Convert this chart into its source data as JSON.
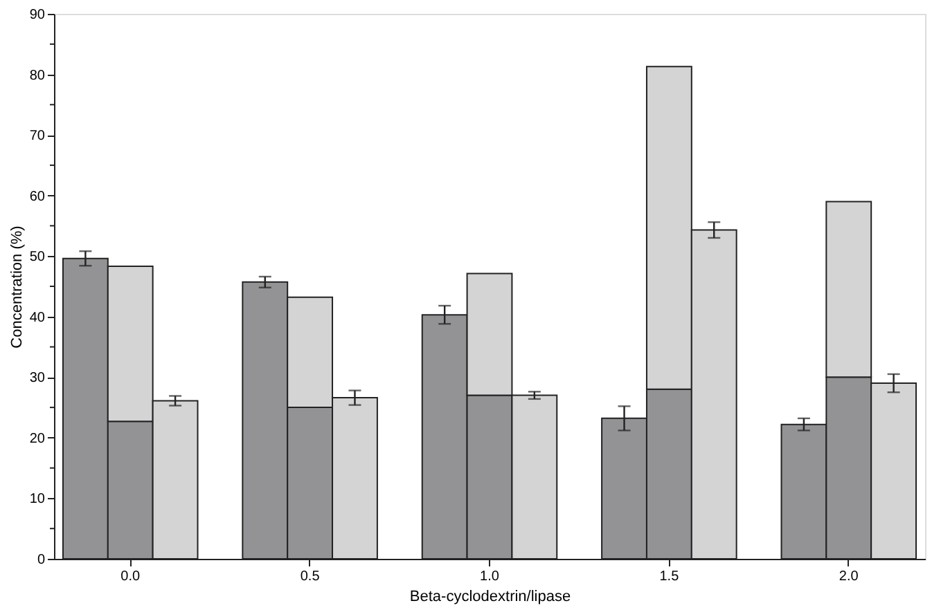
{
  "chart_data": {
    "type": "bar",
    "xlabel": "Beta-cyclodextrin/lipase",
    "ylabel": "Concentration (%)",
    "stacked": true,
    "categories": [
      null,
      "0.0",
      null,
      null,
      null,
      "0.5",
      null,
      null,
      null,
      "1.0",
      null,
      null,
      null,
      "1.5",
      null,
      null,
      null,
      "2.0",
      null
    ],
    "series": [
      {
        "color": "#939396",
        "values": [
          49.6,
          22.7,
          null,
          null,
          45.7,
          25.0,
          null,
          null,
          40.3,
          27.0,
          null,
          null,
          23.2,
          28.0,
          null,
          null,
          22.2,
          30.0,
          null
        ],
        "errors": [
          1.2,
          null,
          null,
          null,
          0.9,
          null,
          null,
          null,
          1.5,
          null,
          null,
          null,
          2.0,
          null,
          null,
          null,
          1.0,
          null,
          null
        ]
      },
      {
        "color": "#d4d4d4",
        "values": [
          null,
          25.6,
          26.1,
          null,
          null,
          18.2,
          26.6,
          null,
          null,
          20.1,
          27.0,
          null,
          null,
          53.3,
          54.3,
          null,
          null,
          29.0,
          29.0
        ],
        "errors": [
          null,
          null,
          0.8,
          null,
          null,
          null,
          1.2,
          null,
          null,
          null,
          0.6,
          null,
          null,
          null,
          1.3,
          null,
          null,
          null,
          1.5
        ]
      }
    ],
    "ylim": [
      0,
      90
    ],
    "yticks": [
      0,
      {
        "value": 5,
        "label": null
      },
      10,
      {
        "value": 15,
        "label": null
      },
      20,
      {
        "value": 25,
        "label": null
      },
      30,
      {
        "value": 35,
        "label": null
      },
      40,
      {
        "value": 45,
        "label": null
      },
      50,
      {
        "value": 55,
        "label": null
      },
      60,
      {
        "value": 65,
        "label": null
      },
      70,
      {
        "value": 75,
        "label": null
      },
      80,
      {
        "value": 85,
        "label": null
      },
      90
    ],
    "grid": false,
    "legend": false
  }
}
